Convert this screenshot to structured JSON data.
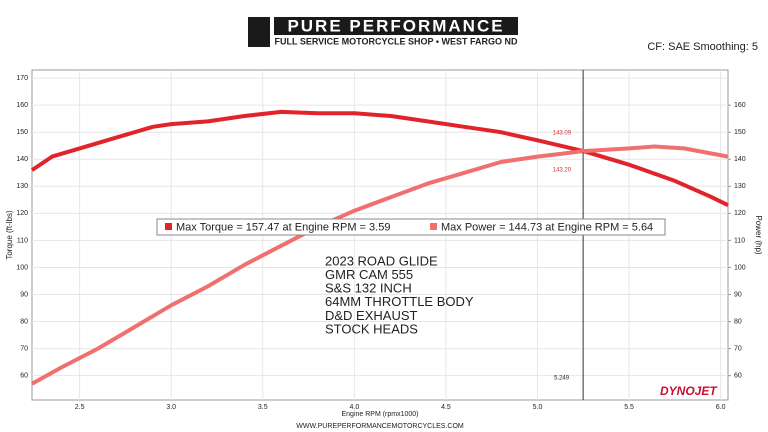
{
  "header": {
    "brand": "PURE PERFORMANCE",
    "tagline": "FULL SERVICE MOTORCYCLE SHOP • WEST FARGO ND",
    "settings": "CF: SAE Smoothing: 5"
  },
  "chart_data": {
    "type": "line",
    "y_label": "Torque (ft-lbs)",
    "y2_label": "Power (hp)",
    "x_label": "Engine RPM (rpmx1000)",
    "xlim": [
      2.24,
      6.04
    ],
    "xticks": [
      2.5,
      {
        "value": 3,
        "label": "3.0"
      },
      3.5,
      {
        "value": 4,
        "label": "4.0"
      },
      4.5,
      {
        "value": 5,
        "label": "5.0"
      },
      5.5,
      {
        "value": 6,
        "label": "6.0"
      }
    ],
    "ylim": [
      51,
      173
    ],
    "yticks": [
      60,
      70,
      80,
      90,
      100,
      110,
      120,
      130,
      140,
      150,
      160,
      170
    ],
    "y2lim": [
      51,
      173
    ],
    "y2ticks": [
      60,
      70,
      80,
      90,
      100,
      110,
      120,
      130,
      140,
      150,
      160
    ],
    "grid": true,
    "series": [
      {
        "name": "Max Torque = 157.47 at Engine RPM = 3.59",
        "color": "#e0242a",
        "axis": "y",
        "x": [
          2.24,
          2.35,
          2.5,
          2.7,
          2.9,
          3.0,
          3.2,
          3.4,
          3.6,
          3.8,
          4.0,
          4.2,
          4.4,
          4.6,
          4.8,
          5.0,
          5.25,
          5.5,
          5.75,
          5.95,
          6.04
        ],
        "values": [
          136,
          141,
          144,
          148,
          152,
          153,
          154,
          156,
          157.5,
          157,
          157,
          156,
          154,
          152,
          150,
          147,
          143,
          138,
          132,
          126,
          123
        ]
      },
      {
        "name": "Max Power = 144.73 at Engine RPM = 5.64",
        "color": "#f07070",
        "axis": "y2",
        "x": [
          2.24,
          2.4,
          2.6,
          2.8,
          3.0,
          3.2,
          3.4,
          3.6,
          3.8,
          4.0,
          4.2,
          4.4,
          4.6,
          4.8,
          5.0,
          5.25,
          5.5,
          5.64,
          5.8,
          6.04
        ],
        "values": [
          57,
          63,
          70,
          78,
          86,
          93,
          101,
          108,
          115,
          121,
          126,
          131,
          135,
          139,
          141,
          143,
          144,
          144.7,
          144,
          141
        ]
      }
    ],
    "cursor": {
      "x": 5.249,
      "values": [
        143.09,
        143.2
      ],
      "value_labels": [
        "143.09",
        "143.20"
      ]
    },
    "notes": [
      "2023 ROAD GLIDE",
      "GMR CAM 555",
      "S&S 132 INCH",
      "64MM THROTTLE BODY",
      "D&D EXHAUST",
      "STOCK HEADS"
    ],
    "brand_mark": "DYNOJET"
  },
  "footer": "WWW.PUREPERFORMANCEMOTORCYCLES.COM"
}
